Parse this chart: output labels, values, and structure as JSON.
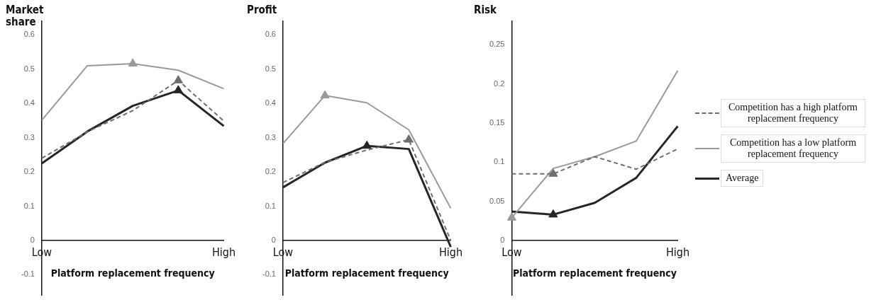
{
  "chart_data": [
    {
      "type": "line",
      "ylabel": "Market share",
      "xlabel": "Platform replacement frequency",
      "categories": [
        "Low",
        null,
        null,
        null,
        "High"
      ],
      "ylim": [
        -0.16,
        0.64
      ],
      "yticks": [
        -0.1,
        0,
        0.1,
        0.2,
        0.3,
        0.4,
        0.5,
        0.6
      ],
      "grid": false,
      "legend": false,
      "marker": "none",
      "series": [
        {
          "color": "#6e6e6e",
          "line_style": "dashed",
          "values": [
            0.24,
            0.317,
            0.379,
            0.467,
            0.349
          ]
        },
        {
          "color": "#999999",
          "line_style": "solid",
          "values": [
            0.351,
            0.51,
            0.516,
            0.497,
            0.443
          ]
        },
        {
          "color": "#262626",
          "line_style": "solid",
          "values": [
            0.225,
            0.318,
            0.393,
            0.438,
            0.334
          ]
        },
        {
          "type": "scatter",
          "marker": "triangle",
          "color": "#6e6e6e",
          "values": [
            null,
            null,
            null,
            0.467,
            null
          ]
        },
        {
          "type": "scatter",
          "marker": "triangle",
          "color": "#999999",
          "values": [
            null,
            null,
            0.516,
            null,
            null
          ]
        },
        {
          "type": "scatter",
          "marker": "triangle",
          "color": "#262626",
          "values": [
            null,
            null,
            null,
            0.438,
            null
          ]
        }
      ]
    },
    {
      "type": "line",
      "ylabel": "Profit",
      "xlabel": "Platform replacement frequency",
      "categories": [
        "Low",
        null,
        null,
        null,
        "High"
      ],
      "ylim": [
        -0.16,
        0.64
      ],
      "yticks": [
        -0.1,
        0,
        0.1,
        0.2,
        0.3,
        0.4,
        0.5,
        0.6
      ],
      "grid": false,
      "legend": false,
      "marker": "none",
      "series": [
        {
          "color": "#6e6e6e",
          "line_style": "dashed",
          "values": [
            0.169,
            0.228,
            0.264,
            0.294,
            0.0
          ]
        },
        {
          "color": "#999999",
          "line_style": "solid",
          "values": [
            0.283,
            0.423,
            0.402,
            0.323,
            0.094
          ]
        },
        {
          "color": "#262626",
          "line_style": "solid",
          "values": [
            0.155,
            0.227,
            0.276,
            0.267,
            -0.019
          ]
        },
        {
          "type": "scatter",
          "marker": "triangle",
          "color": "#6e6e6e",
          "values": [
            null,
            null,
            null,
            0.294,
            null
          ]
        },
        {
          "type": "scatter",
          "marker": "triangle",
          "color": "#999999",
          "values": [
            null,
            0.423,
            null,
            null,
            null
          ]
        },
        {
          "type": "scatter",
          "marker": "triangle",
          "color": "#262626",
          "values": [
            null,
            null,
            0.276,
            null,
            null
          ]
        }
      ]
    },
    {
      "type": "line",
      "ylabel": "Risk",
      "xlabel": "Platform replacement frequency",
      "categories": [
        "Low",
        null,
        null,
        null,
        "High"
      ],
      "ylim": [
        -0.07,
        0.28
      ],
      "yticks": [
        0,
        0.05,
        0.1,
        0.15,
        0.2,
        0.25
      ],
      "grid": false,
      "legend": "right",
      "marker": "none",
      "series": [
        {
          "name": "Competition has a high platform replacement frequency",
          "color": "#6e6e6e",
          "line_style": "dashed",
          "values": [
            0.085,
            0.085,
            0.107,
            0.091,
            0.117
          ]
        },
        {
          "name": "Competition has a low platform replacement frequency",
          "color": "#999999",
          "line_style": "solid",
          "values": [
            0.029,
            0.092,
            0.107,
            0.127,
            0.217
          ]
        },
        {
          "name": "Average",
          "color": "#262626",
          "line_style": "solid",
          "values": [
            0.037,
            0.033,
            0.048,
            0.08,
            0.146
          ]
        },
        {
          "type": "scatter",
          "marker": "triangle",
          "color": "#6e6e6e",
          "values": [
            null,
            0.085,
            null,
            null,
            null
          ]
        },
        {
          "type": "scatter",
          "marker": "triangle",
          "color": "#999999",
          "values": [
            0.029,
            null,
            null,
            null,
            null
          ]
        },
        {
          "type": "scatter",
          "marker": "triangle",
          "color": "#262626",
          "values": [
            null,
            0.033,
            null,
            null,
            null
          ]
        }
      ]
    }
  ]
}
